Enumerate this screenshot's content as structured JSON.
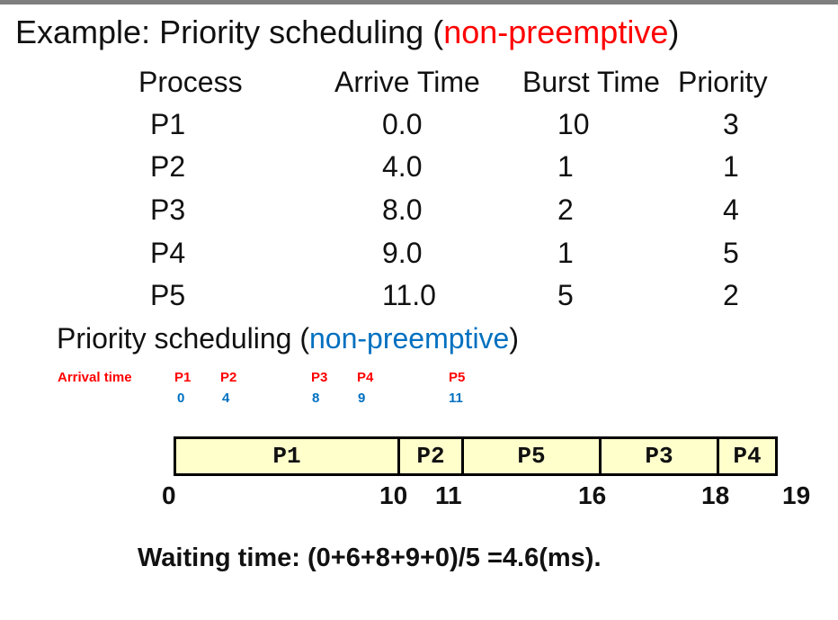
{
  "title": {
    "prefix": "Example: Priority scheduling (",
    "highlight": "non-preemptive",
    "suffix": ")"
  },
  "table": {
    "headers": [
      "Process",
      "Arrive Time",
      "Burst Time",
      "Priority"
    ],
    "rows": [
      [
        "P1",
        "0.0",
        "10",
        "3"
      ],
      [
        "P2",
        "4.0",
        "1",
        "1"
      ],
      [
        "P3",
        "8.0",
        "2",
        "4"
      ],
      [
        "P4",
        "9.0",
        "1",
        "5"
      ],
      [
        "P5",
        "11.0",
        "5",
        "2"
      ]
    ]
  },
  "subtitle": {
    "prefix": "Priority scheduling (",
    "highlight": "non-preemptive",
    "suffix": ")"
  },
  "arrivals": {
    "label": "Arrival time",
    "processes": [
      "P1",
      "P2",
      "P3",
      "P4",
      "P5"
    ],
    "times": [
      "0",
      "4",
      "8",
      "9",
      "11"
    ]
  },
  "gantt": {
    "segments": [
      {
        "label": "P1",
        "start": 0,
        "end": 10
      },
      {
        "label": "P2",
        "start": 10,
        "end": 11
      },
      {
        "label": "P5",
        "start": 11,
        "end": 16
      },
      {
        "label": "P3",
        "start": 16,
        "end": 18
      },
      {
        "label": "P4",
        "start": 18,
        "end": 19
      }
    ],
    "ticks": [
      "0",
      "10",
      "11",
      "16",
      "18",
      "19"
    ]
  },
  "waiting_time": "Waiting time: (0+6+8+9+0)/5 =4.6(ms).",
  "colors": {
    "highlight_red": "#ff0000",
    "highlight_blue": "#0070c0",
    "gantt_fill": "#ffffcc",
    "top_bar": "#7f7f7f"
  }
}
